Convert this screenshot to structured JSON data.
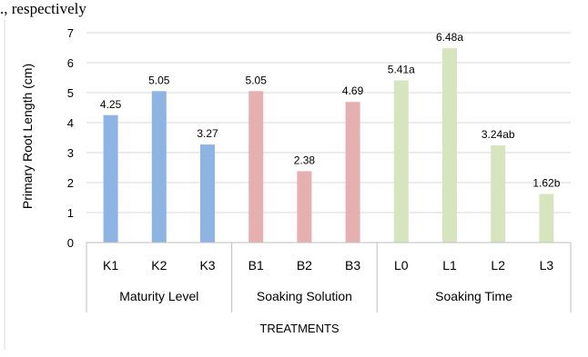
{
  "page_text": "., respectively",
  "chart_data": {
    "type": "bar",
    "ylabel": "Primary Root Length (cm)",
    "xlabel": "TREATMENTS",
    "ylim": [
      0,
      7
    ],
    "yticks": [
      0,
      1,
      2,
      3,
      4,
      5,
      6,
      7
    ],
    "grid": true,
    "groups": [
      {
        "name": "Maturity Level",
        "color": "#8eb4e3",
        "bars": [
          {
            "category": "K1",
            "value": 4.25,
            "label": "4.25"
          },
          {
            "category": "K2",
            "value": 5.05,
            "label": "5.05"
          },
          {
            "category": "K3",
            "value": 3.27,
            "label": "3.27"
          }
        ]
      },
      {
        "name": "Soaking Solution",
        "color": "#e6b0b0",
        "bars": [
          {
            "category": "B1",
            "value": 5.05,
            "label": "5.05"
          },
          {
            "category": "B2",
            "value": 2.38,
            "label": "2.38"
          },
          {
            "category": "B3",
            "value": 4.69,
            "label": "4.69"
          }
        ]
      },
      {
        "name": "Soaking Time",
        "color": "#d7e4bd",
        "bars": [
          {
            "category": "L0",
            "value": 5.41,
            "label": "5.41a"
          },
          {
            "category": "L1",
            "value": 6.48,
            "label": "6.48a"
          },
          {
            "category": "L2",
            "value": 3.24,
            "label": "3.24ab"
          },
          {
            "category": "L3",
            "value": 1.62,
            "label": "1.62b"
          }
        ]
      }
    ]
  }
}
